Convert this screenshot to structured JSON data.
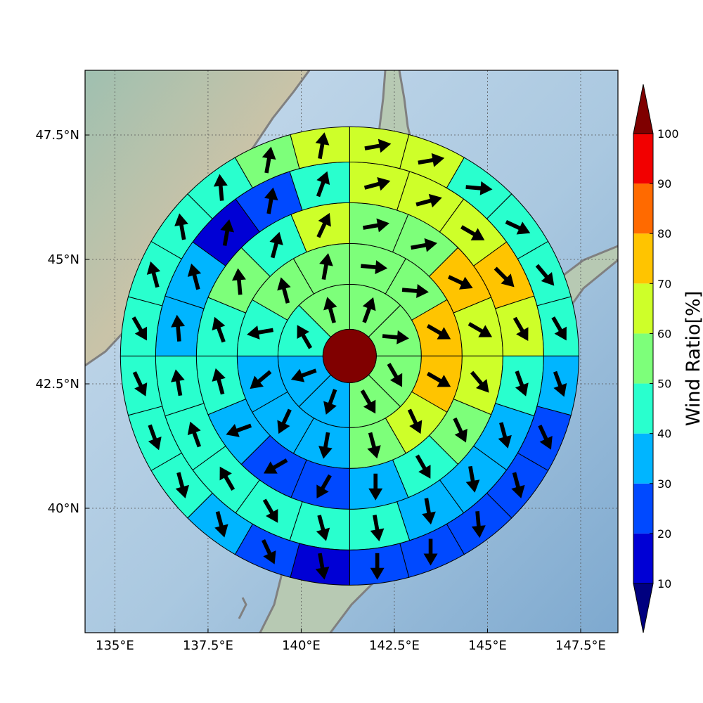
{
  "chart_data": {
    "type": "polar-sector-map",
    "map_extent": {
      "lon": [
        134.2,
        148.5
      ],
      "lat": [
        37.5,
        48.8
      ]
    },
    "center": {
      "lon": 141.3,
      "lat": 43.06
    },
    "lon_ticks": [
      135,
      137.5,
      140,
      142.5,
      145,
      147.5
    ],
    "lat_ticks": [
      40,
      42.5,
      45,
      47.5
    ],
    "lon_tick_labels": [
      "135°E",
      "137.5°E",
      "140°E",
      "142.5°E",
      "145°E",
      "147.5°E"
    ],
    "lat_tick_labels": [
      "40°N",
      "42.5°N",
      "45°N",
      "47.5°N"
    ],
    "grid": true,
    "center_disc_color": "#800000",
    "ring_counts": [
      8,
      12,
      16,
      20,
      24
    ],
    "rings": [
      {
        "values": [
          55,
          55,
          55,
          52,
          38,
          32,
          45,
          52
        ],
        "arrows": [
          20,
          95,
          150,
          150,
          200,
          250,
          330,
          345
        ]
      },
      {
        "values": [
          55,
          55,
          72,
          72,
          65,
          55,
          38,
          32,
          32,
          45,
          55,
          55
        ],
        "arrows": [
          95,
          95,
          120,
          120,
          155,
          165,
          190,
          205,
          230,
          260,
          345,
          10
        ]
      },
      {
        "values": [
          55,
          55,
          75,
          68,
          68,
          55,
          42,
          32,
          22,
          22,
          32,
          42,
          48,
          55,
          45,
          62
        ],
        "arrows": [
          80,
          80,
          115,
          120,
          140,
          155,
          150,
          180,
          210,
          240,
          250,
          345,
          340,
          355,
          15,
          25
        ]
      },
      {
        "values": [
          62,
          62,
          62,
          75,
          65,
          45,
          35,
          32,
          32,
          42,
          42,
          42,
          45,
          45,
          48,
          32,
          32,
          15,
          25,
          40
        ],
        "arrows": [
          75,
          75,
          120,
          135,
          150,
          160,
          165,
          170,
          170,
          170,
          165,
          150,
          330,
          340,
          350,
          355,
          345,
          10,
          10,
          20
        ]
      },
      {
        "values": [
          62,
          62,
          48,
          48,
          45,
          45,
          32,
          22,
          22,
          22,
          22,
          22,
          15,
          22,
          32,
          42,
          48,
          48,
          48,
          48,
          48,
          48,
          58,
          62
        ],
        "arrows": [
          80,
          80,
          95,
          115,
          140,
          150,
          160,
          155,
          165,
          175,
          180,
          180,
          170,
          155,
          165,
          165,
          160,
          155,
          150,
          345,
          350,
          355,
          10,
          10
        ]
      }
    ],
    "colorbar": {
      "label": "Wind Ratio[%]",
      "tick_values": [
        10,
        20,
        30,
        40,
        50,
        60,
        70,
        80,
        90,
        100
      ],
      "tick_labels": [
        "10",
        "20",
        "30",
        "40",
        "50",
        "60",
        "70",
        "80",
        "90",
        "100"
      ],
      "bounds": [
        10,
        100
      ],
      "colors": [
        "#0000d5",
        "#0049ff",
        "#00b5ff",
        "#29ffce",
        "#7dff7a",
        "#ceff29",
        "#ffc400",
        "#ff6a00",
        "#f20000"
      ],
      "under_color": "#00007f",
      "over_color": "#7f0000"
    }
  }
}
